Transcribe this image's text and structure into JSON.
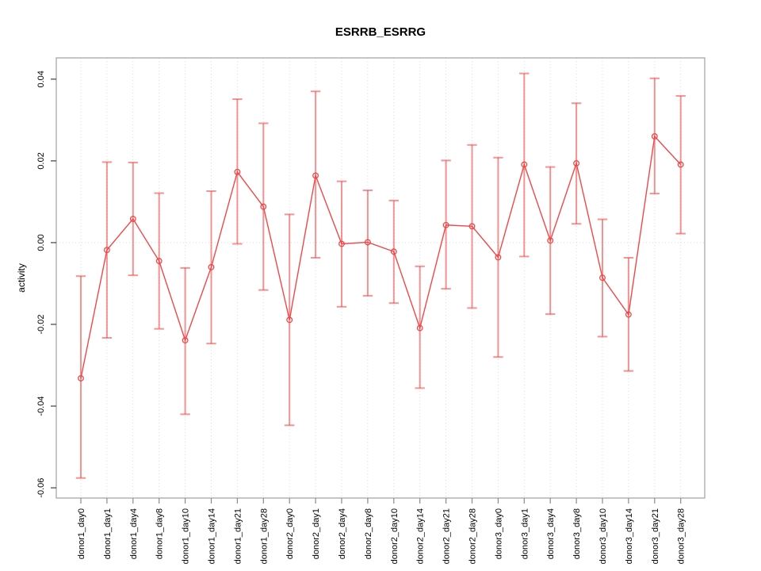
{
  "chart_data": {
    "type": "line",
    "title": "ESRRB_ESRRG",
    "ylabel": "activity",
    "xlabel": "",
    "categories": [
      "donor1_day0",
      "donor1_day1",
      "donor1_day4",
      "donor1_day8",
      "donor1_day10",
      "donor1_day14",
      "donor1_day21",
      "donor1_day28",
      "donor2_day0",
      "donor2_day1",
      "donor2_day4",
      "donor2_day8",
      "donor2_day10",
      "donor2_day14",
      "donor2_day21",
      "donor2_day28",
      "donor3_day0",
      "donor3_day1",
      "donor3_day4",
      "donor3_day8",
      "donor3_day10",
      "donor3_day14",
      "donor3_day21",
      "donor3_day28"
    ],
    "series": [
      {
        "name": "activity",
        "marker": "open-circle",
        "values": [
          -0.0332,
          -0.0018,
          0.0058,
          -0.0045,
          -0.0239,
          -0.006,
          0.0173,
          0.0088,
          -0.0189,
          0.0164,
          -0.0003,
          0.0001,
          -0.0022,
          -0.0209,
          0.0043,
          0.004,
          -0.0036,
          0.0191,
          0.0005,
          0.0194,
          -0.0086,
          -0.0176,
          0.026,
          0.0191
        ],
        "upper": [
          -0.0082,
          0.0197,
          0.0196,
          0.0121,
          -0.0062,
          0.0126,
          0.0351,
          0.0292,
          0.0069,
          0.037,
          0.015,
          0.0128,
          0.0103,
          -0.0058,
          0.0201,
          0.0239,
          0.0208,
          0.0414,
          0.0185,
          0.0341,
          0.0057,
          -0.0037,
          0.0402,
          0.0359
        ],
        "lower": [
          -0.0576,
          -0.0233,
          -0.008,
          -0.0211,
          -0.042,
          -0.0247,
          -0.0003,
          -0.0116,
          -0.0447,
          -0.0037,
          -0.0157,
          -0.013,
          -0.0148,
          -0.0356,
          -0.0113,
          -0.016,
          -0.028,
          -0.0034,
          -0.0175,
          0.0046,
          -0.023,
          -0.0314,
          0.012,
          0.0022
        ]
      }
    ],
    "y_ticks": [
      0.04,
      0.02,
      0.0,
      -0.02,
      -0.04,
      -0.06
    ],
    "y_tick_labels": [
      "0.04",
      "0.02",
      "0.00",
      "-0.02",
      "-0.04",
      "-0.06"
    ],
    "ylim": [
      -0.0625,
      0.0452
    ],
    "grid": "dotted vertical line at each category, dotted horizontal line at 0.00",
    "legend": "none",
    "colors": {
      "series": "#ef4848",
      "error_bar": "rgba(240,80,80,0.62)",
      "grid": "#d9d9d9",
      "box": "#a0a0a0",
      "tick_y": "#3f3f3f",
      "tick_x": "#8a8a8a",
      "text": "#000000"
    }
  }
}
